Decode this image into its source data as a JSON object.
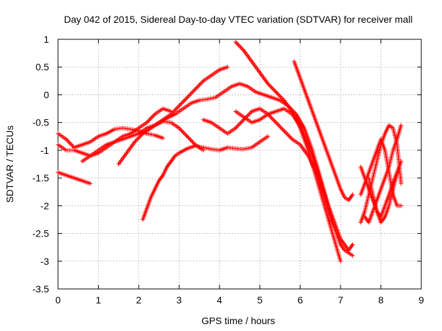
{
  "chart_data": {
    "type": "scatter",
    "title": "Day 042 of 2015, Sidereal Day-to-day VTEC variation (SDTVAR) for receiver mall",
    "xlabel": "GPS time / hours",
    "ylabel": "SDTVAR / TECUs",
    "xlim": [
      0,
      9
    ],
    "ylim": [
      -3.5,
      1
    ],
    "xticks": [
      "0",
      "1",
      "2",
      "3",
      "4",
      "5",
      "6",
      "7",
      "8",
      "9"
    ],
    "yticks": [
      "1",
      "0.5",
      "0",
      "-0.5",
      "-1",
      "-1.5",
      "-2",
      "-2.5",
      "-3",
      "-3.5"
    ],
    "grid": true,
    "marker": "+",
    "color": "#ff0000",
    "series": [
      {
        "name": "s1",
        "x": [
          0.0,
          0.2,
          0.4,
          0.6,
          0.8
        ],
        "y": [
          -1.4,
          -1.45,
          -1.5,
          -1.55,
          -1.6
        ]
      },
      {
        "name": "s2",
        "x": [
          0.0,
          0.2,
          0.4,
          0.6,
          0.8,
          1.0,
          1.2,
          1.4,
          1.6,
          1.8,
          2.0,
          2.2,
          2.4,
          2.6
        ],
        "y": [
          -0.7,
          -0.8,
          -0.95,
          -0.9,
          -0.85,
          -0.75,
          -0.7,
          -0.62,
          -0.6,
          -0.62,
          -0.65,
          -0.7,
          -0.73,
          -0.78
        ]
      },
      {
        "name": "s3",
        "x": [
          0.0,
          0.2,
          0.4,
          0.6,
          0.8,
          1.0,
          1.2,
          1.4,
          1.6,
          1.8,
          2.0,
          2.2,
          2.4,
          2.6,
          2.8
        ],
        "y": [
          -0.9,
          -1.0,
          -1.0,
          -1.05,
          -1.1,
          -1.05,
          -0.95,
          -0.85,
          -0.75,
          -0.7,
          -0.6,
          -0.5,
          -0.35,
          -0.25,
          -0.3
        ]
      },
      {
        "name": "s4",
        "x": [
          0.6,
          0.8,
          1.0,
          1.2,
          1.4,
          1.6,
          1.8,
          2.0,
          2.2,
          2.4,
          2.6,
          2.8,
          3.0,
          3.2,
          3.4,
          3.6,
          3.8,
          4.0,
          4.2
        ],
        "y": [
          -1.2,
          -1.1,
          -1.0,
          -0.9,
          -0.85,
          -0.8,
          -0.75,
          -0.7,
          -0.65,
          -0.55,
          -0.45,
          -0.35,
          -0.2,
          -0.05,
          0.1,
          0.25,
          0.35,
          0.45,
          0.5
        ]
      },
      {
        "name": "s5",
        "x": [
          1.5,
          1.7,
          1.9,
          2.1,
          2.3,
          2.5,
          2.7,
          2.9,
          3.1,
          3.3,
          3.5,
          3.7,
          3.9,
          4.1,
          4.3,
          4.5,
          4.7,
          4.9,
          5.1,
          5.3,
          5.5,
          5.7,
          5.9,
          6.1,
          6.3,
          6.5,
          6.7,
          6.9,
          7.0,
          7.1,
          7.2,
          7.3
        ],
        "y": [
          -1.25,
          -1.05,
          -0.85,
          -0.7,
          -0.6,
          -0.5,
          -0.42,
          -0.35,
          -0.25,
          -0.15,
          -0.1,
          -0.08,
          -0.05,
          0.05,
          0.15,
          0.2,
          0.15,
          0.05,
          0.0,
          -0.05,
          -0.1,
          -0.2,
          -0.35,
          -0.6,
          -1.0,
          -1.5,
          -2.0,
          -2.4,
          -2.6,
          -2.7,
          -2.8,
          -2.7
        ]
      },
      {
        "name": "s6",
        "x": [
          2.1,
          2.2,
          2.3,
          2.4,
          2.5,
          2.6,
          2.7,
          2.8,
          2.9,
          3.0,
          3.2,
          3.4,
          3.6,
          3.8,
          4.0,
          4.2,
          4.4,
          4.6,
          4.8,
          5.0,
          5.2
        ],
        "y": [
          -2.25,
          -2.05,
          -1.85,
          -1.7,
          -1.55,
          -1.45,
          -1.3,
          -1.2,
          -1.1,
          -1.05,
          -0.97,
          -0.92,
          -0.95,
          -0.98,
          -1.0,
          -0.95,
          -0.97,
          -0.98,
          -0.95,
          -0.85,
          -0.75
        ]
      },
      {
        "name": "s7",
        "x": [
          2.0,
          2.2,
          2.4,
          2.6,
          2.8,
          3.0,
          3.2,
          3.4,
          3.6
        ],
        "y": [
          -0.7,
          -0.6,
          -0.55,
          -0.48,
          -0.5,
          -0.6,
          -0.75,
          -0.9,
          -1.0
        ]
      },
      {
        "name": "s8",
        "x": [
          3.6,
          3.8,
          4.0,
          4.2,
          4.4,
          4.6,
          4.8,
          5.0,
          5.2,
          5.4,
          5.6,
          5.8,
          6.0,
          6.2,
          6.4,
          6.6,
          6.8,
          7.0,
          7.1,
          7.2,
          7.3
        ],
        "y": [
          -0.45,
          -0.5,
          -0.6,
          -0.7,
          -0.6,
          -0.45,
          -0.3,
          -0.25,
          -0.35,
          -0.5,
          -0.65,
          -0.8,
          -0.9,
          -1.1,
          -1.4,
          -1.8,
          -2.3,
          -2.7,
          -2.8,
          -2.85,
          -2.9
        ]
      },
      {
        "name": "s9",
        "x": [
          4.4,
          4.6,
          4.8,
          5.0,
          5.2,
          5.4,
          5.6,
          5.8,
          6.0,
          6.2,
          6.4,
          6.6,
          6.8,
          7.0
        ],
        "y": [
          0.95,
          0.8,
          0.6,
          0.4,
          0.2,
          0.05,
          -0.1,
          -0.3,
          -0.6,
          -1.0,
          -1.5,
          -2.0,
          -2.5,
          -3.0
        ]
      },
      {
        "name": "s10",
        "x": [
          4.4,
          4.6,
          4.8,
          5.0,
          5.2,
          5.4,
          5.6,
          5.8,
          6.0,
          6.2,
          6.4,
          6.6,
          6.8
        ],
        "y": [
          -0.3,
          -0.4,
          -0.5,
          -0.45,
          -0.35,
          -0.3,
          -0.25,
          -0.35,
          -0.55,
          -0.9,
          -1.3,
          -1.8,
          -2.3
        ]
      },
      {
        "name": "s11",
        "x": [
          5.85,
          5.95,
          6.05,
          6.15,
          6.3,
          6.45,
          6.6,
          6.75,
          6.9,
          7.0,
          7.1,
          7.2,
          7.3
        ],
        "y": [
          0.6,
          0.4,
          0.2,
          0.0,
          -0.3,
          -0.6,
          -0.9,
          -1.2,
          -1.5,
          -1.7,
          -1.85,
          -1.9,
          -1.8
        ]
      },
      {
        "name": "s12",
        "x": [
          7.5,
          7.6,
          7.7,
          7.8,
          7.9,
          8.0,
          8.1,
          8.2,
          8.3,
          8.4,
          8.5
        ],
        "y": [
          -2.3,
          -2.1,
          -1.8,
          -1.5,
          -1.2,
          -0.9,
          -0.7,
          -0.55,
          -0.6,
          -0.9,
          -1.6
        ]
      },
      {
        "name": "s13",
        "x": [
          7.5,
          7.6,
          7.7,
          7.8,
          7.9,
          8.0,
          8.1,
          8.2,
          8.3,
          8.4,
          8.5
        ],
        "y": [
          -1.3,
          -1.5,
          -1.7,
          -1.9,
          -2.1,
          -2.2,
          -2.0,
          -1.8,
          -1.6,
          -1.4,
          -1.2
        ]
      },
      {
        "name": "s14",
        "x": [
          7.5,
          7.6,
          7.7,
          7.8,
          7.9,
          8.0,
          8.1,
          8.2,
          8.3,
          8.4,
          8.5
        ],
        "y": [
          -1.8,
          -1.6,
          -1.4,
          -1.2,
          -1.0,
          -0.8,
          -1.0,
          -1.4,
          -1.8,
          -2.0,
          -2.0
        ]
      },
      {
        "name": "s15",
        "x": [
          7.6,
          7.7,
          7.8,
          7.9,
          8.0,
          8.1,
          8.2,
          8.3,
          8.4,
          8.5
        ],
        "y": [
          -2.2,
          -2.3,
          -2.1,
          -1.9,
          -1.7,
          -1.5,
          -1.3,
          -1.0,
          -0.8,
          -0.55
        ]
      },
      {
        "name": "s16",
        "x": [
          7.7,
          7.8,
          7.9,
          8.0,
          8.1,
          8.2,
          8.3,
          8.4
        ],
        "y": [
          -1.5,
          -1.8,
          -2.1,
          -2.3,
          -2.2,
          -2.0,
          -1.7,
          -1.4
        ]
      }
    ]
  }
}
